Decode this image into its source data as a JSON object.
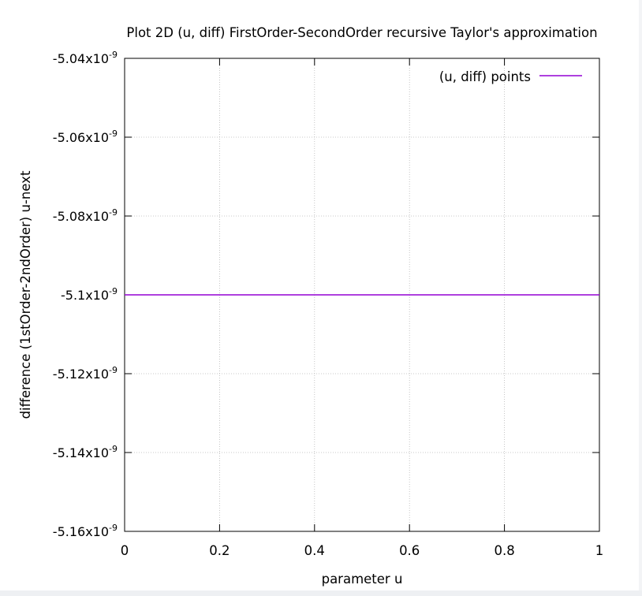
{
  "chart_data": {
    "type": "line",
    "title": "Plot 2D (u, diff) FirstOrder-SecondOrder recursive Taylor's approximation",
    "xlabel": "parameter u",
    "ylabel": "difference (1stOrder-2ndOrder) u-next",
    "xlim": [
      0,
      1
    ],
    "ylim": [
      -5.16e-09,
      -5.04e-09
    ],
    "x_ticks": [
      {
        "value": 0,
        "label": "0"
      },
      {
        "value": 0.2,
        "label": "0.2"
      },
      {
        "value": 0.4,
        "label": "0.4"
      },
      {
        "value": 0.6,
        "label": "0.6"
      },
      {
        "value": 0.8,
        "label": "0.8"
      },
      {
        "value": 1,
        "label": "1"
      }
    ],
    "y_ticks": [
      {
        "value": -5.04e-09,
        "mantissa": "-5.04x10",
        "exp": "-9"
      },
      {
        "value": -5.06e-09,
        "mantissa": "-5.06x10",
        "exp": "-9"
      },
      {
        "value": -5.08e-09,
        "mantissa": "-5.08x10",
        "exp": "-9"
      },
      {
        "value": -5.1e-09,
        "mantissa": "-5.1x10",
        "exp": "-9"
      },
      {
        "value": -5.12e-09,
        "mantissa": "-5.12x10",
        "exp": "-9"
      },
      {
        "value": -5.14e-09,
        "mantissa": "-5.14x10",
        "exp": "-9"
      },
      {
        "value": -5.16e-09,
        "mantissa": "-5.16x10",
        "exp": "-9"
      }
    ],
    "grid": true,
    "legend_position": "top-right",
    "series": [
      {
        "name": "(u, diff) points",
        "color": "#9400d3",
        "x": [
          0,
          1
        ],
        "y": [
          -5.1e-09,
          -5.1e-09
        ]
      }
    ]
  }
}
